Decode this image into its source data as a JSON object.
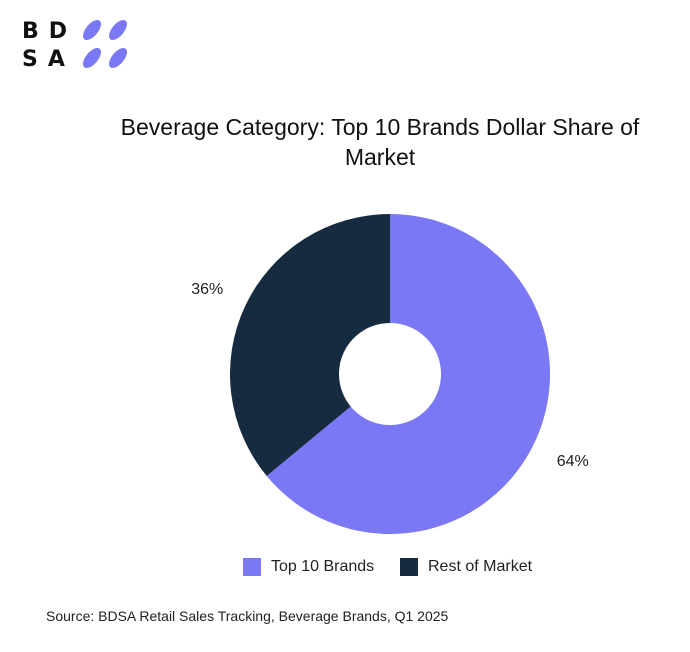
{
  "logo": {
    "line1": "BD",
    "line2": "SA",
    "leaf_color": "#7b78f6"
  },
  "chart_data": {
    "type": "pie",
    "title": "Beverage Category: Top 10 Brands Dollar Share of Market",
    "donut": true,
    "categories": [
      "Top 10 Brands",
      "Rest of Market"
    ],
    "values": [
      64,
      36
    ],
    "labels": [
      "64%",
      "36%"
    ],
    "colors": [
      "#7b78f6",
      "#172b40"
    ],
    "legend_position": "bottom"
  },
  "source": "Source: BDSA Retail Sales Tracking, Beverage Brands, Q1 2025"
}
